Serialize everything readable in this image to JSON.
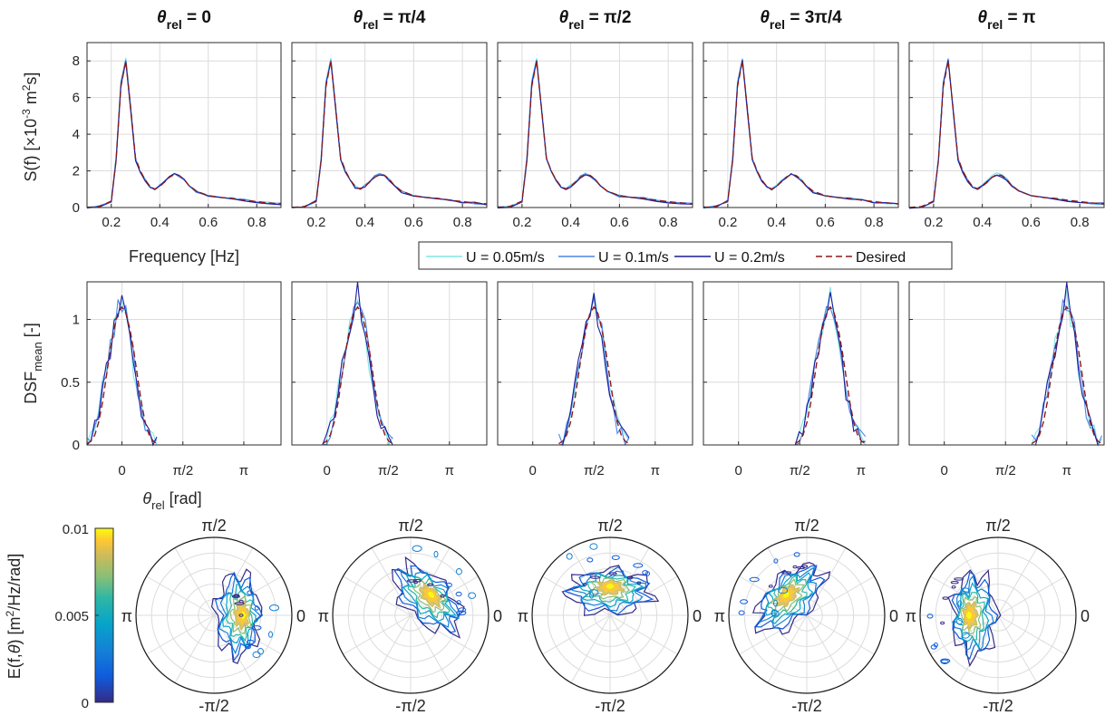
{
  "figure": {
    "column_titles": [
      {
        "sym": "θ",
        "sub": "rel",
        "rest": " = 0"
      },
      {
        "sym": "θ",
        "sub": "rel",
        "rest": " = π/4"
      },
      {
        "sym": "θ",
        "sub": "rel",
        "rest": " = π/2"
      },
      {
        "sym": "θ",
        "sub": "rel",
        "rest": " = 3π/4"
      },
      {
        "sym": "θ",
        "sub": "rel",
        "rest": " = π"
      }
    ],
    "colors": {
      "u005": "#7fe6e6",
      "u01": "#4a86e8",
      "u02": "#1c1c9c",
      "desired": "#8b1a1a"
    },
    "colormap": "parula"
  },
  "chart_data": [
    {
      "type": "line",
      "name": "spectrum",
      "ylabel": "S(f) [×10⁻³ m²s]",
      "ylabel_parts": {
        "pre": "S(f) [×10",
        "sup1": "-3",
        "mid": " m",
        "sup2": "2",
        "post": "s]"
      },
      "xlabel": "Frequency [Hz]",
      "xlim": [
        0.1,
        0.9
      ],
      "ylim": [
        0,
        9
      ],
      "xticks": [
        "0.2",
        "0.4",
        "0.6",
        "0.8"
      ],
      "xtick_values": [
        0.2,
        0.4,
        0.6,
        0.8
      ],
      "yticks": [
        "0",
        "2",
        "4",
        "6",
        "8"
      ],
      "ytick_values": [
        0,
        2,
        4,
        6,
        8
      ],
      "x": [
        0.1,
        0.15,
        0.2,
        0.22,
        0.24,
        0.26,
        0.28,
        0.3,
        0.32,
        0.34,
        0.36,
        0.38,
        0.4,
        0.42,
        0.44,
        0.46,
        0.48,
        0.5,
        0.52,
        0.55,
        0.6,
        0.65,
        0.7,
        0.75,
        0.8,
        0.85,
        0.9
      ],
      "series": [
        {
          "name": "U = 0.05m/s",
          "values": [
            0.0,
            0.05,
            0.35,
            2.8,
            6.9,
            8.2,
            5.5,
            2.7,
            2.0,
            1.5,
            1.15,
            1.05,
            1.2,
            1.45,
            1.7,
            1.85,
            1.75,
            1.55,
            1.2,
            0.9,
            0.65,
            0.55,
            0.5,
            0.4,
            0.32,
            0.25,
            0.2
          ]
        },
        {
          "name": "U = 0.1m/s",
          "values": [
            0.0,
            0.05,
            0.35,
            2.7,
            6.8,
            8.1,
            5.4,
            2.65,
            1.95,
            1.5,
            1.1,
            1.0,
            1.2,
            1.4,
            1.7,
            1.8,
            1.72,
            1.5,
            1.18,
            0.88,
            0.62,
            0.56,
            0.5,
            0.4,
            0.33,
            0.24,
            0.2
          ]
        },
        {
          "name": "U = 0.2m/s",
          "values": [
            0.0,
            0.05,
            0.35,
            2.6,
            6.7,
            8.0,
            5.3,
            2.6,
            1.95,
            1.45,
            1.1,
            1.0,
            1.15,
            1.4,
            1.65,
            1.8,
            1.7,
            1.5,
            1.15,
            0.85,
            0.6,
            0.55,
            0.48,
            0.38,
            0.3,
            0.24,
            0.2
          ]
        },
        {
          "name": "Desired",
          "values": [
            0.0,
            0.05,
            0.35,
            2.6,
            6.6,
            8.0,
            5.4,
            2.7,
            2.0,
            1.5,
            1.15,
            1.0,
            1.15,
            1.4,
            1.65,
            1.8,
            1.75,
            1.55,
            1.2,
            0.9,
            0.65,
            0.55,
            0.5,
            0.4,
            0.32,
            0.25,
            0.2
          ]
        }
      ]
    },
    {
      "type": "line",
      "name": "directional spreading",
      "ylabel": "DSF_mean [-]",
      "ylabel_parts": {
        "pre": "DSF",
        "sub": "mean",
        "post": " [-]"
      },
      "xlabel": "θrel [rad]",
      "xlabel_parts": {
        "sym": "θ",
        "sub": "rel",
        "post": " [rad]"
      },
      "xlim": [
        -0.9,
        4.1
      ],
      "ylim": [
        0,
        1.3
      ],
      "xticks": [
        "0",
        "π/2",
        "π"
      ],
      "xtick_values": [
        0,
        1.5708,
        3.1416
      ],
      "yticks": [
        "0",
        "0.5",
        "1"
      ],
      "ytick_values": [
        0,
        0.5,
        1
      ],
      "centers": [
        0,
        0.7854,
        1.5708,
        2.3562,
        3.1416
      ],
      "offsets": [
        -0.9,
        -0.8,
        -0.7,
        -0.6,
        -0.5,
        -0.4,
        -0.3,
        -0.2,
        -0.1,
        0.0,
        0.1,
        0.2,
        0.3,
        0.4,
        0.5,
        0.6,
        0.7,
        0.8,
        0.9
      ],
      "series": [
        {
          "name": "U = 0.05m/s",
          "values": [
            0.02,
            0.05,
            0.15,
            0.3,
            0.47,
            0.62,
            0.8,
            0.95,
            1.05,
            1.2,
            1.0,
            0.88,
            0.6,
            0.4,
            0.32,
            0.18,
            0.1,
            0.05,
            0.02
          ]
        },
        {
          "name": "U = 0.1m/s",
          "values": [
            0.03,
            0.06,
            0.12,
            0.28,
            0.45,
            0.6,
            0.78,
            0.92,
            1.1,
            1.12,
            1.05,
            0.95,
            0.7,
            0.45,
            0.25,
            0.15,
            0.08,
            0.05,
            0.03
          ]
        },
        {
          "name": "U = 0.2m/s",
          "values": [
            0.02,
            0.05,
            0.14,
            0.26,
            0.44,
            0.62,
            0.75,
            0.95,
            1.02,
            1.24,
            1.0,
            0.92,
            0.66,
            0.42,
            0.28,
            0.16,
            0.09,
            0.05,
            0.02
          ]
        },
        {
          "name": "Desired",
          "values": [
            0.01,
            0.03,
            0.08,
            0.18,
            0.34,
            0.55,
            0.76,
            0.93,
            1.05,
            1.1,
            1.05,
            0.93,
            0.76,
            0.55,
            0.34,
            0.18,
            0.08,
            0.03,
            0.01
          ]
        }
      ]
    },
    {
      "type": "heatmap",
      "name": "polar energy density",
      "colorbar_label": "E(f,θ) [m²/Hz/rad]",
      "colorbar_parts": {
        "pre": "E(f,",
        "sym": "θ",
        "mid": ") [m",
        "sup": "2",
        "post": "/Hz/rad]"
      },
      "clim": [
        0,
        0.01
      ],
      "colorbar_ticks": [
        "0",
        "0.005",
        "0.01"
      ],
      "colorbar_tick_values": [
        0,
        0.005,
        0.01
      ],
      "angle_labels": {
        "top": "π/2",
        "right": "0",
        "bottom": "-π/2",
        "left": "π"
      },
      "peak_directions": [
        0,
        0.7854,
        1.5708,
        2.3562,
        3.1416
      ]
    }
  ],
  "legend": {
    "entries": [
      {
        "label": "U = 0.05m/s",
        "style": "solid",
        "color_key": "u005"
      },
      {
        "label": "U = 0.1m/s",
        "style": "solid",
        "color_key": "u01"
      },
      {
        "label": "U = 0.2m/s",
        "style": "solid",
        "color_key": "u02"
      },
      {
        "label": "Desired",
        "style": "dashed",
        "color_key": "desired"
      }
    ]
  }
}
